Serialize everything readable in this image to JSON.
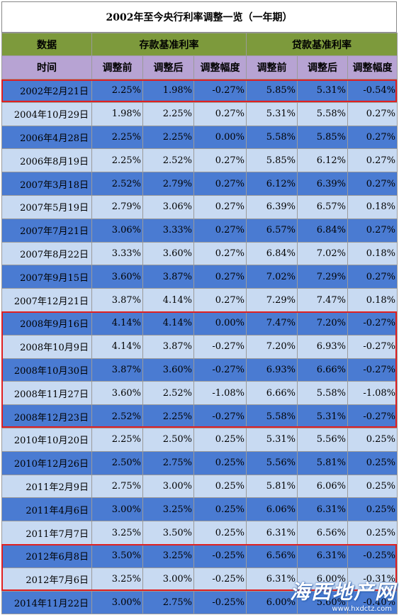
{
  "title": "2002年至今央行利率调整一览（一年期）",
  "header": {
    "col1_top": "数据",
    "deposit_group": "存款基准利率",
    "loan_group": "贷款基准利率",
    "col1_bottom": "时间",
    "before": "调整前",
    "after": "调整后",
    "change": "调整幅度"
  },
  "rows": [
    {
      "date": "2002年2月21日",
      "d_before": "2.25%",
      "d_after": "1.98%",
      "d_change": "-0.27%",
      "l_before": "5.85%",
      "l_after": "5.31%",
      "l_change": "-0.54%"
    },
    {
      "date": "2004年10月29日",
      "d_before": "1.98%",
      "d_after": "2.25%",
      "d_change": "0.27%",
      "l_before": "5.31%",
      "l_after": "5.58%",
      "l_change": "0.27%"
    },
    {
      "date": "2006年4月28日",
      "d_before": "2.25%",
      "d_after": "2.25%",
      "d_change": "0.00%",
      "l_before": "5.58%",
      "l_after": "5.85%",
      "l_change": "0.27%"
    },
    {
      "date": "2006年8月19日",
      "d_before": "2.25%",
      "d_after": "2.52%",
      "d_change": "0.27%",
      "l_before": "5.85%",
      "l_after": "6.12%",
      "l_change": "0.27%"
    },
    {
      "date": "2007年3月18日",
      "d_before": "2.52%",
      "d_after": "2.79%",
      "d_change": "0.27%",
      "l_before": "6.12%",
      "l_after": "6.39%",
      "l_change": "0.27%"
    },
    {
      "date": "2007年5月19日",
      "d_before": "2.79%",
      "d_after": "3.06%",
      "d_change": "0.27%",
      "l_before": "6.39%",
      "l_after": "6.57%",
      "l_change": "0.18%"
    },
    {
      "date": "2007年7月21日",
      "d_before": "3.06%",
      "d_after": "3.33%",
      "d_change": "0.27%",
      "l_before": "6.57%",
      "l_after": "6.84%",
      "l_change": "0.27%"
    },
    {
      "date": "2007年8月22日",
      "d_before": "3.33%",
      "d_after": "3.60%",
      "d_change": "0.27%",
      "l_before": "6.84%",
      "l_after": "7.02%",
      "l_change": "0.18%"
    },
    {
      "date": "2007年9月15日",
      "d_before": "3.60%",
      "d_after": "3.87%",
      "d_change": "0.27%",
      "l_before": "7.02%",
      "l_after": "7.29%",
      "l_change": "0.27%"
    },
    {
      "date": "2007年12月21日",
      "d_before": "3.87%",
      "d_after": "4.14%",
      "d_change": "0.27%",
      "l_before": "7.29%",
      "l_after": "7.47%",
      "l_change": "0.18%"
    },
    {
      "date": "2008年9月16日",
      "d_before": "4.14%",
      "d_after": "4.14%",
      "d_change": "0.00%",
      "l_before": "7.47%",
      "l_after": "7.20%",
      "l_change": "-0.27%"
    },
    {
      "date": "2008年10月9日",
      "d_before": "4.14%",
      "d_after": "3.87%",
      "d_change": "-0.27%",
      "l_before": "7.20%",
      "l_after": "6.93%",
      "l_change": "-0.27%"
    },
    {
      "date": "2008年10月30日",
      "d_before": "3.87%",
      "d_after": "3.60%",
      "d_change": "-0.27%",
      "l_before": "6.93%",
      "l_after": "6.66%",
      "l_change": "-0.27%"
    },
    {
      "date": "2008年11月27日",
      "d_before": "3.60%",
      "d_after": "2.52%",
      "d_change": "-1.08%",
      "l_before": "6.66%",
      "l_after": "5.58%",
      "l_change": "-1.08%"
    },
    {
      "date": "2008年12月23日",
      "d_before": "2.52%",
      "d_after": "2.25%",
      "d_change": "-0.27%",
      "l_before": "5.58%",
      "l_after": "5.31%",
      "l_change": "-0.27%"
    },
    {
      "date": "2010年10月20日",
      "d_before": "2.25%",
      "d_after": "2.50%",
      "d_change": "0.25%",
      "l_before": "5.31%",
      "l_after": "5.56%",
      "l_change": "0.25%"
    },
    {
      "date": "2010年12月26日",
      "d_before": "2.50%",
      "d_after": "2.75%",
      "d_change": "0.25%",
      "l_before": "5.56%",
      "l_after": "5.81%",
      "l_change": "0.25%"
    },
    {
      "date": "2011年2月9日",
      "d_before": "2.75%",
      "d_after": "3.00%",
      "d_change": "0.25%",
      "l_before": "5.81%",
      "l_after": "6.06%",
      "l_change": "0.25%"
    },
    {
      "date": "2011年4月6日",
      "d_before": "3.00%",
      "d_after": "3.25%",
      "d_change": "0.25%",
      "l_before": "6.06%",
      "l_after": "6.31%",
      "l_change": "0.25%"
    },
    {
      "date": "2011年7月7日",
      "d_before": "3.25%",
      "d_after": "3.50%",
      "d_change": "0.25%",
      "l_before": "6.31%",
      "l_after": "6.56%",
      "l_change": "0.25%"
    },
    {
      "date": "2012年6月8日",
      "d_before": "3.50%",
      "d_after": "3.25%",
      "d_change": "-0.25%",
      "l_before": "6.56%",
      "l_after": "6.31%",
      "l_change": "-0.25%"
    },
    {
      "date": "2012年7月6日",
      "d_before": "3.25%",
      "d_after": "3.00%",
      "d_change": "-0.25%",
      "l_before": "6.31%",
      "l_after": "6.00%",
      "l_change": "-0.31%"
    },
    {
      "date": "2014年11月22日",
      "d_before": "3.00%",
      "d_after": "2.75%",
      "d_change": "-0.25%",
      "l_before": "6.00%",
      "l_after": "5.60%",
      "l_change": "-0.40%"
    }
  ],
  "highlight_row_groups": [
    [
      0,
      0
    ],
    [
      10,
      14
    ],
    [
      20,
      21
    ]
  ],
  "colors": {
    "header_green": "#7d9a3c",
    "header_purple": "#b7a3d3",
    "row_dark": "#4a7bd2",
    "row_light": "#c8daf2",
    "highlight_border": "#e02020"
  },
  "watermark": {
    "brand": "海西地产网",
    "url": "www.hxdctz.com"
  }
}
